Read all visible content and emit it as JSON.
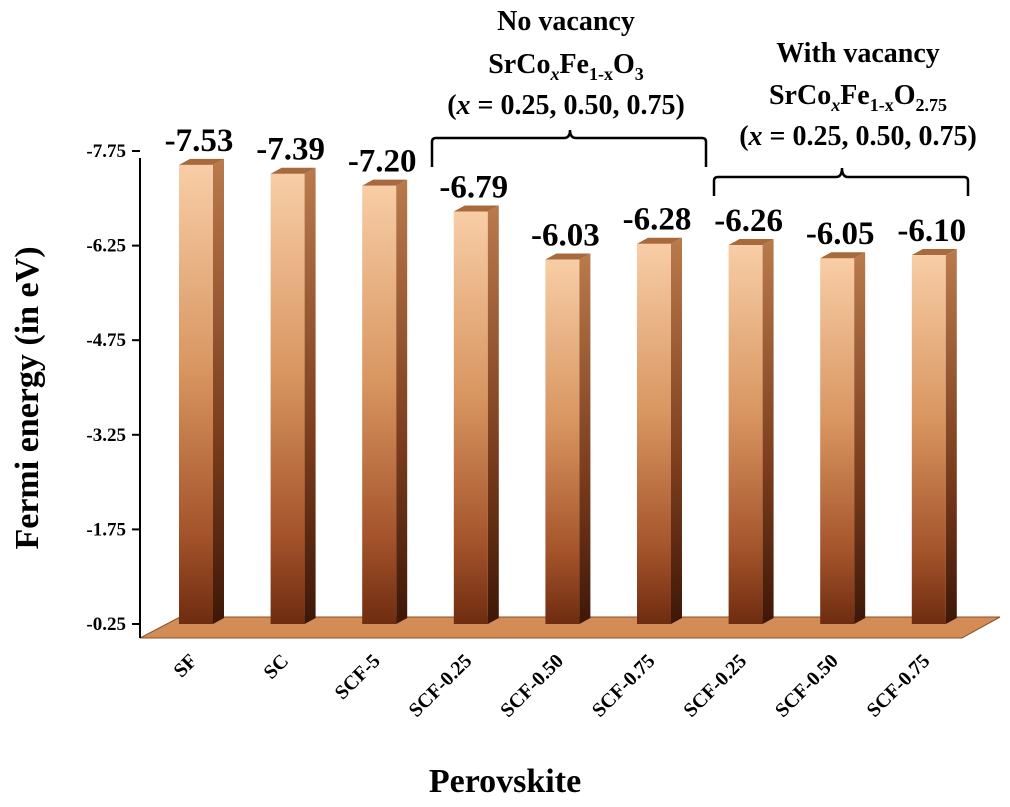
{
  "chart_data": {
    "type": "bar",
    "style": "3d",
    "title": "",
    "xlabel": "Perovskite",
    "ylabel": "Fermi energy (in eV)",
    "ylim": [
      -0.25,
      -7.75
    ],
    "y_ticks": [
      -0.25,
      -1.75,
      -3.25,
      -4.75,
      -6.25,
      -7.75
    ],
    "y_tick_labels": [
      "-0.25",
      "-1.75",
      "-3.25",
      "-4.75",
      "-6.25",
      "-7.75"
    ],
    "categories": [
      "SF",
      "SC",
      "SCF-5",
      "SCF-0.25",
      "SCF-0.50",
      "SCF-0.75",
      "SCF-0.25",
      "SCF-0.50",
      "SCF-0.75"
    ],
    "values": [
      -7.53,
      -7.39,
      -7.2,
      -6.79,
      -6.03,
      -6.28,
      -6.26,
      -6.05,
      -6.1
    ],
    "value_labels": [
      "-7.53",
      "-7.39",
      "-7.20",
      "-6.79",
      "-6.03",
      "-6.28",
      "-6.26",
      "-6.05",
      "-6.10"
    ],
    "annotations": {
      "no_vacancy": {
        "title": "No vacancy",
        "formula": {
          "a": "SrCo",
          "x": "x",
          "b": "Fe",
          "sub": "1-x",
          "c": "O",
          "o_sub": "3"
        },
        "range": {
          "open": "(",
          "x": "x",
          "rest": " = 0.25, 0.50, 0.75)"
        },
        "groups": [
          "SCF-0.25",
          "SCF-0.50",
          "SCF-0.75"
        ]
      },
      "with_vacancy": {
        "title": "With vacancy",
        "formula": {
          "a": "SrCo",
          "x": "x",
          "b": "Fe",
          "sub": "1-x",
          "c": "O",
          "o_sub": "2.75"
        },
        "range": {
          "open": "(",
          "x": "x",
          "rest": " = 0.25, 0.50, 0.75)"
        },
        "groups": [
          "SCF-0.25",
          "SCF-0.50",
          "SCF-0.75"
        ]
      }
    },
    "colors": {
      "bar_light": "#f7c9a0",
      "bar_dark": "#7a3112",
      "floor": "#d38c55"
    }
  }
}
